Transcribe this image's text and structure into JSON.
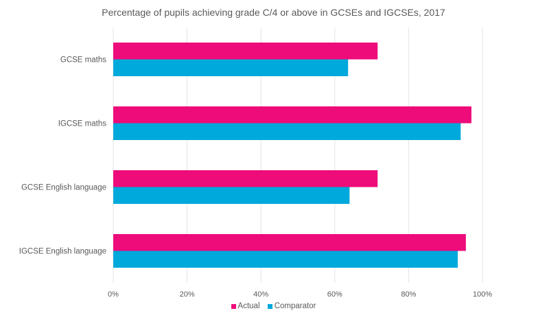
{
  "chart_data": {
    "type": "bar",
    "orientation": "horizontal",
    "title": "Percentage of pupils achieving grade C/4 or above in GCSEs and IGCSEs, 2017",
    "xlabel": "",
    "ylabel": "",
    "categories": [
      "GCSE maths",
      "IGCSE maths",
      "GCSE English language",
      "IGCSE English language"
    ],
    "series": [
      {
        "name": "Actual",
        "color": "#ee0b7a",
        "values": [
          71.6,
          97.0,
          71.6,
          95.5
        ]
      },
      {
        "name": "Comparator",
        "color": "#00a9dc",
        "values": [
          63.6,
          94.1,
          64.0,
          93.3
        ]
      }
    ],
    "xlim": [
      0,
      100
    ],
    "x_ticks": [
      0,
      20,
      40,
      60,
      80,
      100
    ],
    "x_tick_labels": [
      "0%",
      "20%",
      "40%",
      "60%",
      "80%",
      "100%"
    ],
    "grid": true,
    "legend_position": "bottom"
  }
}
